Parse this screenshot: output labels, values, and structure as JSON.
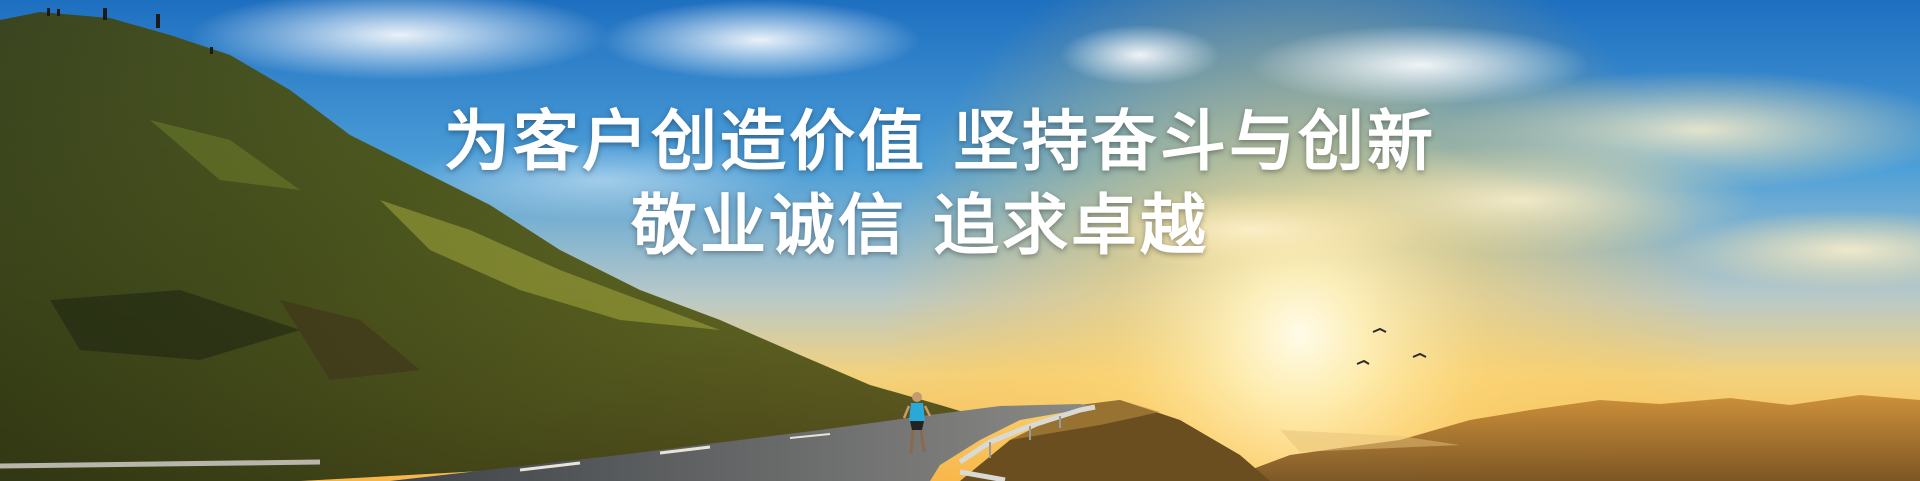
{
  "banner": {
    "slogan_line1": "为客户创造价值 坚持奋斗与创新",
    "slogan_line2": "敬业诚信 追求卓越"
  },
  "colors": {
    "sky_top": "#1f74c4",
    "sky_mid": "#5fa8dc",
    "horizon_glow": "#ffd97a",
    "sun_core": "#fff6d8",
    "hill_dark": "#2a3418",
    "hill_grass": "#7a8a2e",
    "road": "#5a5f66",
    "text": "#ffffff"
  },
  "icons": {
    "birds": "bird-silhouette",
    "runner": "runner-figure"
  }
}
